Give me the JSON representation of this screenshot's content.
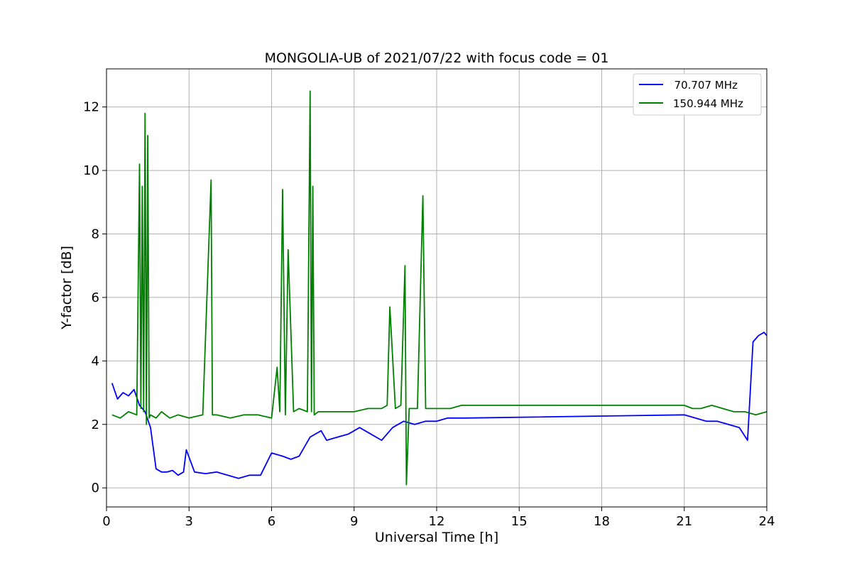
{
  "chart_data": {
    "type": "line",
    "title": "MONGOLIA-UB of 2021/07/22 with focus code = 01",
    "xlabel": "Universal Time [h]",
    "ylabel": "Y-factor [dB]",
    "xlim": [
      0,
      24
    ],
    "ylim": [
      -0.6,
      13.2
    ],
    "xticks": [
      0,
      3,
      6,
      9,
      12,
      15,
      18,
      21,
      24
    ],
    "yticks": [
      0,
      2,
      4,
      6,
      8,
      10,
      12
    ],
    "grid": true,
    "legend_position": "top-right",
    "series": [
      {
        "name": "  70.707 MHz",
        "color": "#0000ff",
        "x": [
          0.2,
          0.4,
          0.6,
          0.8,
          1.0,
          1.2,
          1.4,
          1.6,
          1.8,
          2.0,
          2.2,
          2.4,
          2.6,
          2.8,
          2.9,
          3.2,
          3.6,
          4.0,
          4.4,
          4.8,
          5.2,
          5.6,
          6.0,
          6.4,
          6.7,
          7.0,
          7.4,
          7.8,
          8.0,
          8.4,
          8.8,
          9.2,
          9.6,
          10.0,
          10.4,
          10.8,
          11.2,
          11.6,
          12.0,
          12.4,
          12.8,
          13.0,
          21.0,
          21.4,
          21.8,
          22.2,
          22.6,
          23.0,
          23.3,
          23.5,
          23.7,
          23.9,
          24.0
        ],
        "y": [
          3.3,
          2.8,
          3.0,
          2.9,
          3.1,
          2.6,
          2.4,
          1.9,
          0.6,
          0.5,
          0.5,
          0.55,
          0.4,
          0.5,
          1.2,
          0.5,
          0.45,
          0.5,
          0.4,
          0.3,
          0.4,
          0.4,
          1.1,
          1.0,
          0.9,
          1.0,
          1.6,
          1.8,
          1.5,
          1.6,
          1.7,
          1.9,
          1.7,
          1.5,
          1.9,
          2.1,
          2.0,
          2.1,
          2.1,
          2.2,
          2.2,
          2.2,
          2.3,
          2.2,
          2.1,
          2.1,
          2.0,
          1.9,
          1.5,
          4.6,
          4.8,
          4.9,
          4.8
        ]
      },
      {
        "name": "150.944 MHz",
        "color": "#008000",
        "x": [
          0.2,
          0.5,
          0.8,
          1.1,
          1.2,
          1.25,
          1.3,
          1.35,
          1.4,
          1.45,
          1.5,
          1.55,
          1.6,
          1.8,
          2.0,
          2.3,
          2.6,
          3.0,
          3.5,
          3.8,
          3.85,
          4.0,
          4.5,
          5.0,
          5.5,
          6.0,
          6.2,
          6.3,
          6.4,
          6.5,
          6.6,
          6.8,
          7.0,
          7.3,
          7.4,
          7.45,
          7.5,
          7.55,
          7.7,
          8.0,
          8.5,
          9.0,
          9.5,
          10.0,
          10.2,
          10.3,
          10.5,
          10.7,
          10.85,
          10.9,
          11.0,
          11.3,
          11.5,
          11.6,
          12.0,
          12.5,
          12.9,
          13.0,
          21.0,
          21.3,
          21.6,
          22.0,
          22.4,
          22.8,
          23.2,
          23.6,
          24.0
        ],
        "y": [
          2.3,
          2.2,
          2.4,
          2.3,
          10.2,
          2.5,
          9.5,
          2.4,
          11.8,
          2.0,
          11.1,
          2.2,
          2.3,
          2.2,
          2.4,
          2.2,
          2.3,
          2.2,
          2.3,
          9.7,
          2.3,
          2.3,
          2.2,
          2.3,
          2.3,
          2.2,
          3.8,
          2.4,
          9.4,
          2.3,
          7.5,
          2.4,
          2.5,
          2.4,
          12.5,
          2.4,
          9.5,
          2.3,
          2.4,
          2.4,
          2.4,
          2.4,
          2.5,
          2.5,
          2.6,
          5.7,
          2.5,
          2.6,
          7.0,
          0.1,
          2.5,
          2.5,
          9.2,
          2.5,
          2.5,
          2.5,
          2.6,
          2.6,
          2.6,
          2.5,
          2.5,
          2.6,
          2.5,
          2.4,
          2.4,
          2.3,
          2.4
        ]
      }
    ]
  }
}
